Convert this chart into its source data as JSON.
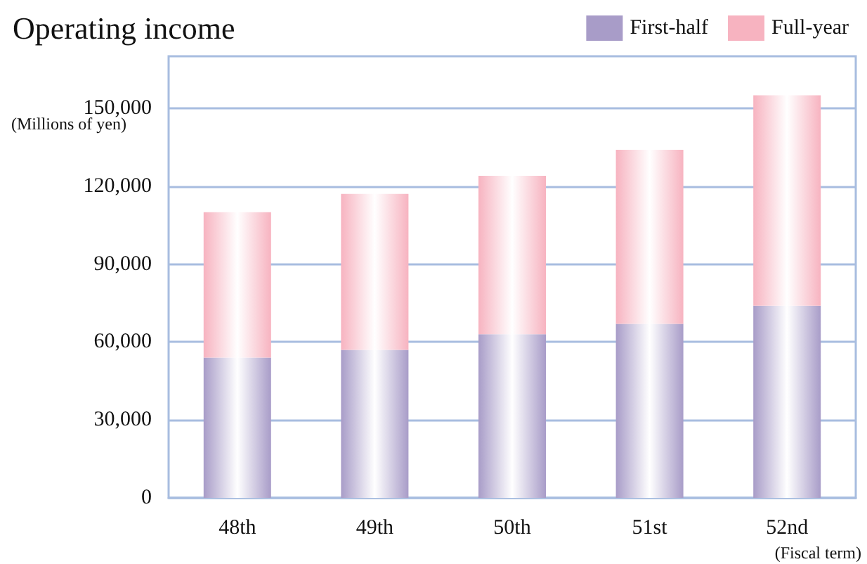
{
  "chart_data": {
    "type": "bar",
    "title": "Operating income",
    "ylabel": "(Millions of yen)",
    "xlabel": "(Fiscal term)",
    "categories": [
      "48th",
      "49th",
      "50th",
      "51st",
      "52nd"
    ],
    "stacked": true,
    "series": [
      {
        "name": "First-half",
        "color": "#a89cc8",
        "values": [
          54000,
          57000,
          63000,
          67000,
          74000
        ]
      },
      {
        "name": "Full-year",
        "color": "#f7b3c0",
        "values": [
          56000,
          60000,
          61000,
          67000,
          81000
        ]
      }
    ],
    "ylim": [
      0,
      170000
    ],
    "yticks": [
      {
        "value": 0,
        "label": "0"
      },
      {
        "value": 30000,
        "label": "30,000"
      },
      {
        "value": 60000,
        "label": "60,000"
      },
      {
        "value": 90000,
        "label": "90,000"
      },
      {
        "value": 120000,
        "label": "120,000"
      },
      {
        "value": 150000,
        "label": "150,000"
      }
    ],
    "grid": "y",
    "legend": "top right"
  }
}
